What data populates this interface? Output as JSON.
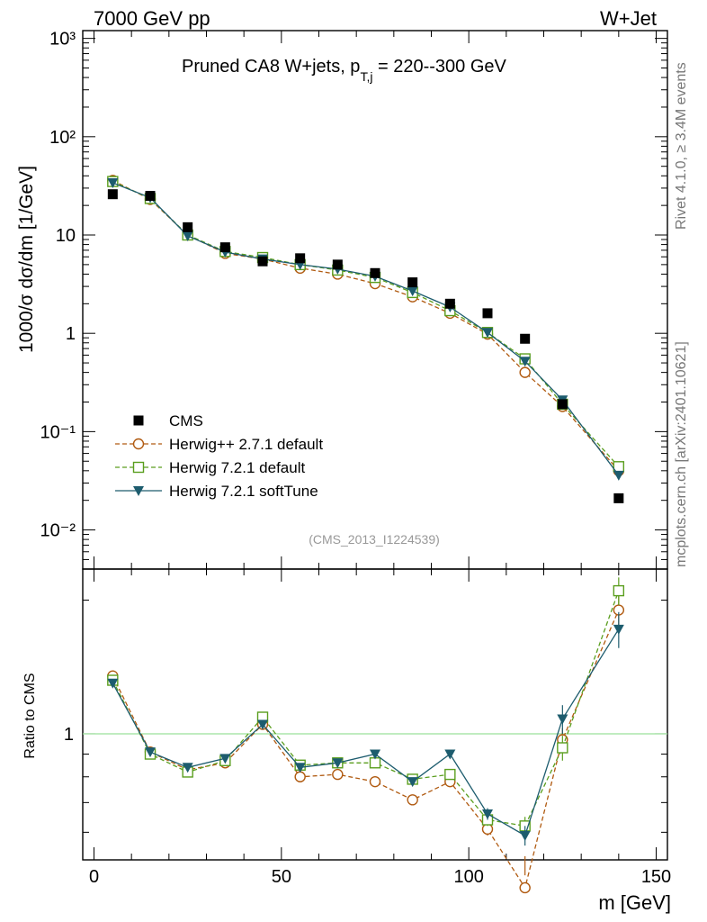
{
  "header": {
    "left_label": "7000 GeV pp",
    "right_label": "W+Jet",
    "side_label_top": "Rivet 4.1.0, ≥ 3.4M events",
    "side_label_bottom": "mcplots.cern.ch [arXiv:2401.10621]"
  },
  "chart_data": [
    {
      "type": "scatter",
      "panel": "main",
      "title_main": "Pruned CA8 W+jets, p",
      "title_sub": "T,j",
      "title_tail": " = 220--300 GeV",
      "ylabel": "1000/σ  dσ/dm [1/GeV]",
      "yscale": "log",
      "ylim": [
        0.004,
        1200
      ],
      "xlim": [
        -3,
        153
      ],
      "y_tick_labels": [
        "10⁻²",
        "10⁻¹",
        "1",
        "10",
        "10²",
        "10³"
      ],
      "y_tick_values": [
        0.01,
        0.1,
        1,
        10,
        100,
        1000
      ],
      "watermark": "(CMS_2013_I1224539)",
      "x": [
        5,
        15,
        25,
        35,
        45,
        55,
        65,
        75,
        85,
        95,
        105,
        115,
        125,
        140
      ],
      "series": [
        {
          "name": "CMS",
          "color": "#000000",
          "marker": "filled-square",
          "line": "none",
          "values": [
            26,
            25,
            12,
            7.5,
            5.4,
            5.8,
            5.0,
            4.1,
            3.3,
            2.0,
            1.6,
            0.88,
            0.19,
            0.021
          ]
        },
        {
          "name": "Herwig++ 2.7.1 default",
          "color": "#b05a10",
          "marker": "open-circle",
          "line": "dashed",
          "values": [
            36,
            23,
            10,
            6.5,
            5.7,
            4.6,
            4.0,
            3.2,
            2.35,
            1.6,
            0.98,
            0.4,
            0.18,
            0.04
          ]
        },
        {
          "name": "Herwig 7.2.1 default",
          "color": "#5a9e1e",
          "marker": "open-square",
          "line": "dashed",
          "values": [
            35,
            23.5,
            10,
            6.8,
            5.9,
            5.0,
            4.4,
            3.7,
            2.6,
            1.7,
            1.02,
            0.55,
            0.19,
            0.044
          ]
        },
        {
          "name": "Herwig 7.2.1 softTune",
          "color": "#1d5c6e",
          "marker": "filled-triangle-down",
          "line": "solid",
          "values": [
            34,
            24,
            9.8,
            6.7,
            5.7,
            5.0,
            4.5,
            3.8,
            2.7,
            1.85,
            1.02,
            0.52,
            0.21,
            0.036
          ]
        }
      ]
    },
    {
      "type": "line",
      "panel": "ratio",
      "ylabel": "Ratio to CMS",
      "xlabel": "m [GeV]",
      "yscale": "log",
      "ylim": [
        0.52,
        2.35
      ],
      "xlim": [
        -3,
        153
      ],
      "reference": 1,
      "reference_color": "#9be09b",
      "x_tick_labels": [
        "0",
        "50",
        "100",
        "150"
      ],
      "x_tick_values": [
        0,
        50,
        100,
        150
      ],
      "y_tick_labels": [
        "1"
      ],
      "y_tick_values": [
        1
      ],
      "x": [
        5,
        15,
        25,
        35,
        45,
        55,
        65,
        75,
        85,
        95,
        105,
        115,
        125,
        140
      ],
      "series": [
        {
          "name": "Herwig++ 2.7.1 default",
          "color": "#b05a10",
          "marker": "open-circle",
          "line": "dashed",
          "values": [
            1.35,
            0.91,
            0.83,
            0.86,
            1.05,
            0.8,
            0.81,
            0.78,
            0.71,
            0.78,
            0.61,
            0.45,
            0.97,
            1.9
          ],
          "errors": [
            0,
            0,
            0,
            0,
            0,
            0,
            0,
            0,
            0,
            0,
            0.02,
            0.03,
            0.06,
            0.15
          ]
        },
        {
          "name": "Herwig 7.2.1 default",
          "color": "#5a9e1e",
          "marker": "open-square",
          "line": "dashed",
          "values": [
            1.32,
            0.9,
            0.82,
            0.87,
            1.09,
            0.85,
            0.86,
            0.86,
            0.79,
            0.81,
            0.64,
            0.62,
            0.93,
            2.1
          ],
          "errors": [
            0,
            0,
            0,
            0,
            0,
            0,
            0,
            0,
            0,
            0,
            0.02,
            0.03,
            0.06,
            0.15
          ]
        },
        {
          "name": "Herwig 7.2.1 softTune",
          "color": "#1d5c6e",
          "marker": "filled-triangle-down",
          "line": "solid",
          "values": [
            1.3,
            0.91,
            0.84,
            0.88,
            1.05,
            0.84,
            0.86,
            0.9,
            0.78,
            0.9,
            0.66,
            0.59,
            1.08,
            1.72
          ],
          "errors": [
            0,
            0,
            0,
            0,
            0,
            0,
            0,
            0,
            0,
            0,
            0.02,
            0.03,
            0.08,
            0.16
          ]
        }
      ]
    }
  ]
}
